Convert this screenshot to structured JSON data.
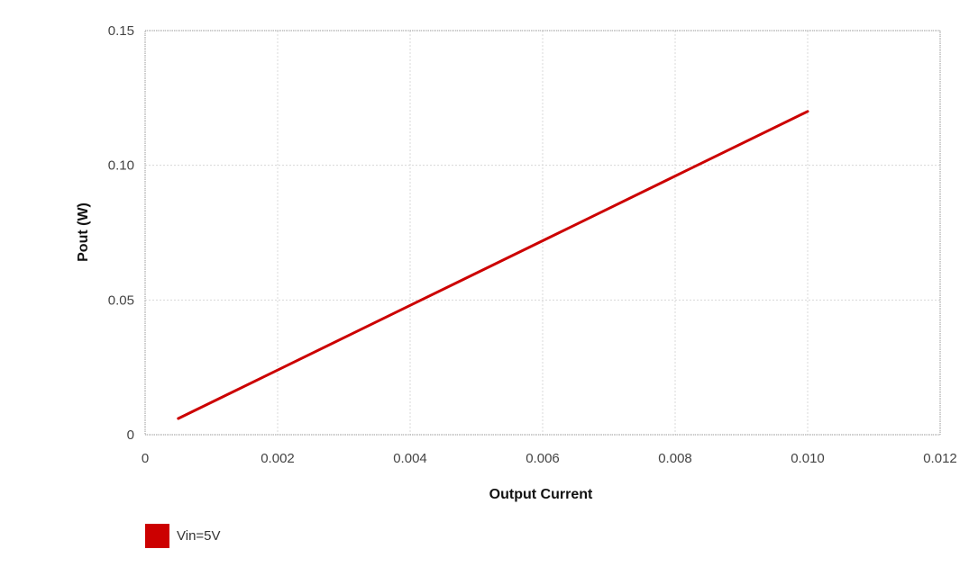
{
  "chart_data": {
    "type": "line",
    "xlabel": "Output Current",
    "ylabel": "Pout (W)",
    "xlim": [
      0,
      0.012
    ],
    "ylim": [
      0,
      0.15
    ],
    "x_ticks": [
      "0",
      "0.002",
      "0.004",
      "0.006",
      "0.008",
      "0.010",
      "0.012"
    ],
    "y_ticks": [
      "0",
      "0.05",
      "0.10",
      "0.15"
    ],
    "grid": true,
    "legend_position": "bottom-left",
    "series": [
      {
        "name": "Vin=5V",
        "color": "#cc0000",
        "x": [
          0.0005,
          0.002,
          0.004,
          0.006,
          0.008,
          0.01
        ],
        "y": [
          0.006,
          0.024,
          0.048,
          0.072,
          0.096,
          0.12
        ]
      }
    ]
  }
}
